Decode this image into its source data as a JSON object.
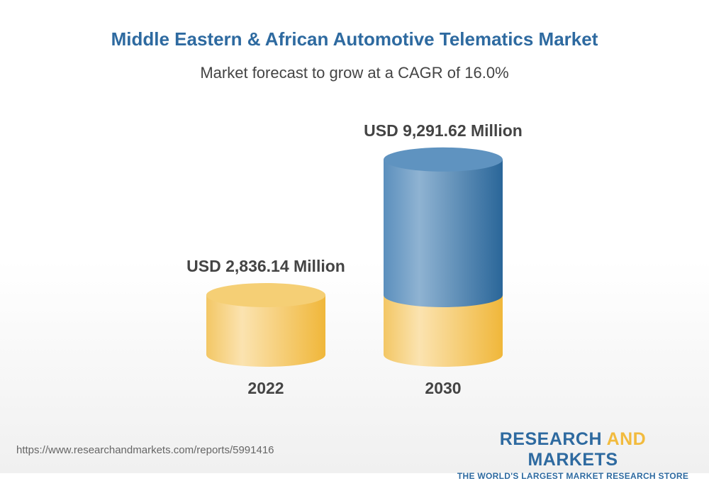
{
  "chart_data": {
    "type": "bar",
    "style": "3d-cylinder",
    "title": "Middle Eastern & African Automotive Telematics Market",
    "subtitle": "Market forecast to grow at a CAGR of 16.0%",
    "categories": [
      "2022",
      "2030"
    ],
    "values": [
      2836.14,
      9291.62
    ],
    "data_labels": [
      "USD 2,836.14 Million",
      "USD 9,291.62 Million"
    ],
    "colors": {
      "base": "#f2bb3e",
      "growth": "#2e6aa0"
    }
  },
  "footer": {
    "url": "https://www.researchandmarkets.com/reports/5991416",
    "logo_part1": "RESEARCH ",
    "logo_part2": "AND",
    "logo_part3": " MARKETS",
    "tagline": "THE WORLD'S LARGEST MARKET RESEARCH STORE"
  }
}
